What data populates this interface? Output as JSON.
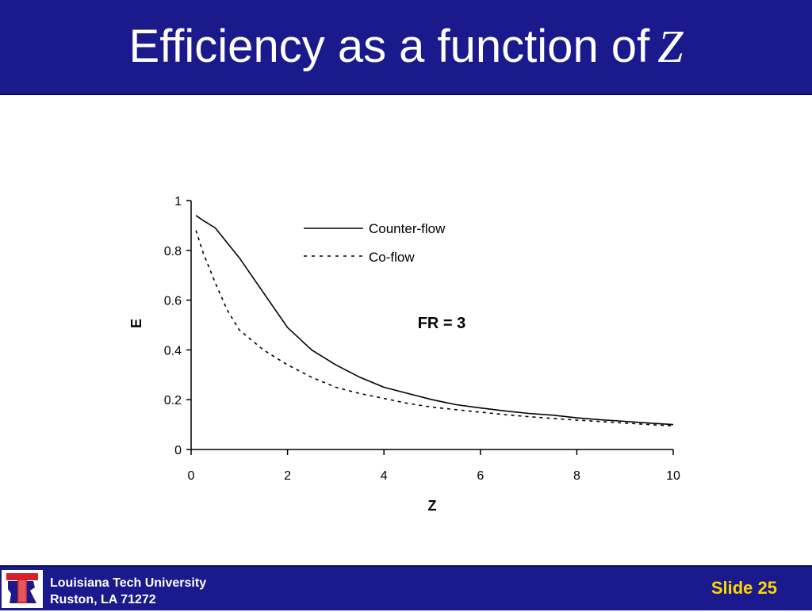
{
  "slide": {
    "title": "Efficiency as a function of",
    "title_variable": "Z"
  },
  "footer": {
    "line1": "Louisiana Tech University",
    "line2": "Ruston, LA 71272",
    "slide_label": "Slide 25",
    "logo_letter": "T"
  },
  "colors": {
    "bar": "#1a1a8c",
    "slide_number": "#ffd700",
    "logo_red": "#d8202a",
    "logo_blue": "#1a1a8c"
  },
  "chart_data": {
    "type": "line",
    "title": "",
    "xlabel": "Z",
    "ylabel": "E",
    "xlim": [
      0,
      10
    ],
    "ylim": [
      0,
      1
    ],
    "xticks": [
      "0",
      "2",
      "4",
      "6",
      "8",
      "10"
    ],
    "yticks": [
      "0",
      "0.2",
      "0.4",
      "0.6",
      "0.8",
      "1"
    ],
    "grid": false,
    "legend_position": "top-right",
    "annotation": "FR = 3",
    "series": [
      {
        "name": "Counter-flow",
        "style": "solid",
        "x": [
          0.1,
          0.25,
          0.5,
          0.75,
          1.0,
          1.5,
          2.0,
          2.5,
          3.0,
          3.5,
          4.0,
          4.5,
          5.0,
          5.5,
          6.0,
          6.5,
          7.0,
          7.5,
          8.0,
          8.5,
          9.0,
          9.5,
          10.0
        ],
        "y": [
          0.94,
          0.92,
          0.89,
          0.83,
          0.77,
          0.63,
          0.49,
          0.4,
          0.34,
          0.29,
          0.25,
          0.225,
          0.2,
          0.18,
          0.167,
          0.155,
          0.145,
          0.138,
          0.127,
          0.119,
          0.113,
          0.106,
          0.1
        ]
      },
      {
        "name": "Co-flow",
        "style": "dashed",
        "x": [
          0.1,
          0.25,
          0.5,
          0.75,
          1.0,
          1.5,
          2.0,
          2.5,
          3.0,
          3.5,
          4.0,
          4.5,
          5.0,
          5.5,
          6.0,
          6.5,
          7.0,
          7.5,
          8.0,
          8.5,
          9.0,
          9.5,
          10.0
        ],
        "y": [
          0.88,
          0.79,
          0.67,
          0.56,
          0.48,
          0.4,
          0.34,
          0.29,
          0.25,
          0.225,
          0.205,
          0.185,
          0.17,
          0.16,
          0.15,
          0.14,
          0.132,
          0.125,
          0.118,
          0.112,
          0.106,
          0.1,
          0.095
        ]
      }
    ]
  }
}
